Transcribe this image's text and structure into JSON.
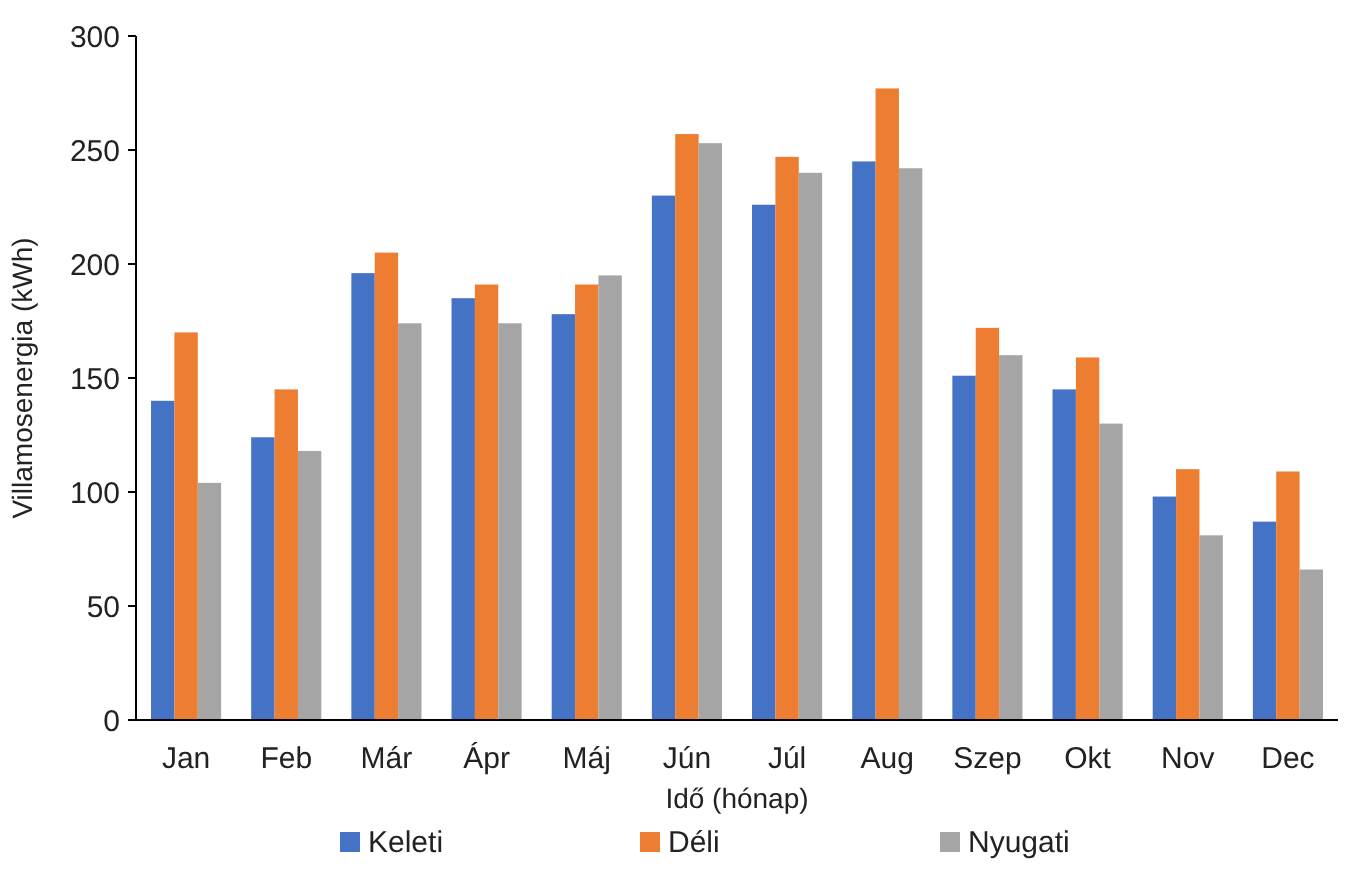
{
  "chart_data": {
    "type": "bar",
    "xlabel": "Idő (hónap)",
    "ylabel": "Villamosenergia (kWh)",
    "categories": [
      "Jan",
      "Feb",
      "Már",
      "Ápr",
      "Máj",
      "Jún",
      "Júl",
      "Aug",
      "Szep",
      "Okt",
      "Nov",
      "Dec"
    ],
    "series": [
      {
        "name": "Keleti",
        "color": "#4472c4",
        "values": [
          140,
          124,
          196,
          185,
          178,
          230,
          226,
          245,
          151,
          145,
          98,
          87
        ]
      },
      {
        "name": "Déli",
        "color": "#ed7d31",
        "values": [
          170,
          145,
          205,
          191,
          191,
          257,
          247,
          277,
          172,
          159,
          110,
          109
        ]
      },
      {
        "name": "Nyugati",
        "color": "#a5a5a5",
        "values": [
          104,
          118,
          174,
          174,
          195,
          253,
          240,
          242,
          160,
          130,
          81,
          66
        ]
      }
    ],
    "ylim": [
      0,
      300
    ],
    "yticks": [
      0,
      50,
      100,
      150,
      200,
      250,
      300
    ],
    "grid": false,
    "legend": "bottom"
  }
}
